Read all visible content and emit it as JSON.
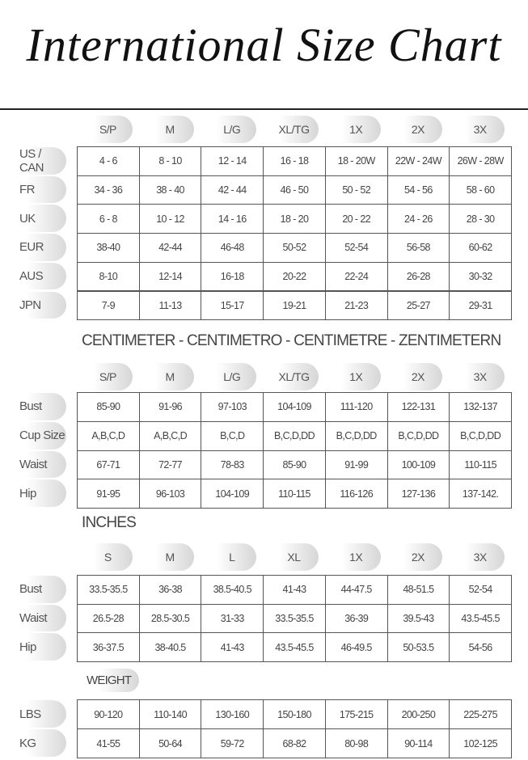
{
  "title": "International Size Chart",
  "sections": [
    {
      "columns": [
        "S/P",
        "M",
        "L/G",
        "XL/TG",
        "1X",
        "2X",
        "3X"
      ],
      "rows": [
        {
          "label": "US / CAN",
          "cells": [
            "4 - 6",
            "8 - 10",
            "12 - 14",
            "16 - 18",
            "18 - 20W",
            "22W - 24W",
            "26W - 28W"
          ]
        },
        {
          "label": "FR",
          "cells": [
            "34 - 36",
            "38 - 40",
            "42 - 44",
            "46 - 50",
            "50 - 52",
            "54 - 56",
            "58 - 60"
          ]
        },
        {
          "label": "UK",
          "cells": [
            "6 - 8",
            "10 - 12",
            "14 - 16",
            "18 - 20",
            "20 - 22",
            "24 - 26",
            "28 - 30"
          ]
        },
        {
          "label": "EUR",
          "cells": [
            "38-40",
            "42-44",
            "46-48",
            "50-52",
            "52-54",
            "56-58",
            "60-62"
          ]
        },
        {
          "label": "AUS",
          "cells": [
            "8-10",
            "12-14",
            "16-18",
            "20-22",
            "22-24",
            "26-28",
            "30-32"
          ]
        },
        {
          "label": "JPN",
          "cells": [
            "7-9",
            "11-13",
            "15-17",
            "19-21",
            "21-23",
            "25-27",
            "29-31"
          ]
        }
      ]
    },
    {
      "heading": "CENTIMETER - CENTIMETRO - CENTIMETRE - ZENTIMETERN",
      "columns": [
        "S/P",
        "M",
        "L/G",
        "XL/TG",
        "1X",
        "2X",
        "3X"
      ],
      "rows": [
        {
          "label": "Bust",
          "cells": [
            "85-90",
            "91-96",
            "97-103",
            "104-109",
            "111-120",
            "122-131",
            "132-137"
          ]
        },
        {
          "label": "Cup Size",
          "cells": [
            "A,B,C,D",
            "A,B,C,D",
            "B,C,D",
            "B,C,D,DD",
            "B,C,D,DD",
            "B,C,D,DD",
            "B,C,D,DD"
          ]
        },
        {
          "label": "Waist",
          "cells": [
            "67-71",
            "72-77",
            "78-83",
            "85-90",
            "91-99",
            "100-109",
            "110-115"
          ]
        },
        {
          "label": "Hip",
          "cells": [
            "91-95",
            "96-103",
            "104-109",
            "110-115",
            "116-126",
            "127-136",
            "137-142."
          ]
        }
      ]
    },
    {
      "heading": "INCHES",
      "columns": [
        "S",
        "M",
        "L",
        "XL",
        "1X",
        "2X",
        "3X"
      ],
      "rows": [
        {
          "label": "Bust",
          "cells": [
            "33.5-35.5",
            "36-38",
            "38.5-40.5",
            "41-43",
            "44-47.5",
            "48-51.5",
            "52-54"
          ]
        },
        {
          "label": "Waist",
          "cells": [
            "26.5-28",
            "28.5-30.5",
            "31-33",
            "33.5-35.5",
            "36-39",
            "39.5-43",
            "43.5-45.5"
          ]
        },
        {
          "label": "Hip",
          "cells": [
            "36-37.5",
            "38-40.5",
            "41-43",
            "43.5-45.5",
            "46-49.5",
            "50-53.5",
            "54-56"
          ]
        }
      ]
    },
    {
      "heading": "WEIGHT",
      "rows": [
        {
          "label": "LBS",
          "cells": [
            "90-120",
            "110-140",
            "130-160",
            "150-180",
            "175-215",
            "200-250",
            "225-275"
          ]
        },
        {
          "label": "KG",
          "cells": [
            "41-55",
            "50-64",
            "59-72",
            "68-82",
            "80-98",
            "90-114",
            "102-125"
          ]
        }
      ]
    }
  ]
}
